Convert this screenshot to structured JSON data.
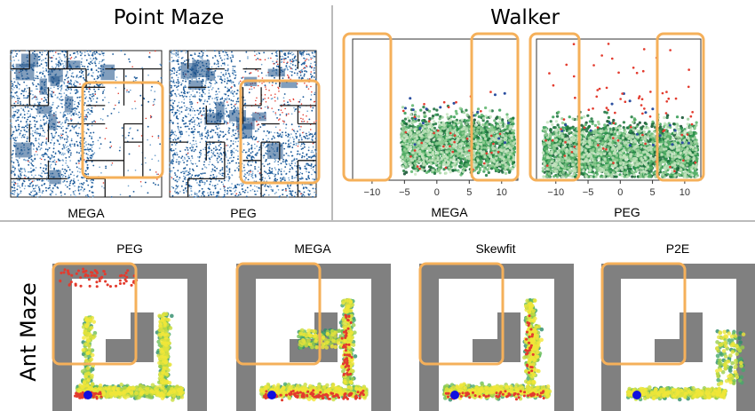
{
  "titles": {
    "point_maze": "Point Maze",
    "walker": "Walker",
    "ant_maze": "Ant Maze"
  },
  "point_maze": {
    "panels": [
      {
        "label": "MEGA"
      },
      {
        "label": "PEG"
      }
    ]
  },
  "walker": {
    "x_ticks": [
      -10,
      -5,
      0,
      5,
      10
    ],
    "xlim": [
      -13,
      12.5
    ],
    "panels": [
      {
        "label": "MEGA",
        "x_range": [
          -5.5,
          12
        ]
      },
      {
        "label": "PEG",
        "x_range": [
          -12,
          12
        ]
      }
    ]
  },
  "ant_maze": {
    "panels": [
      {
        "label": "PEG"
      },
      {
        "label": "MEGA"
      },
      {
        "label": "Skewfit"
      },
      {
        "label": "P2E"
      }
    ]
  },
  "colors": {
    "highlight": "#F5B05A",
    "maze_blue": "#1F5C9A",
    "wall_gray": "#808080",
    "walker_green": "#1E7A3C",
    "red_points": "#E33B2E",
    "start_marker": "#1010E0"
  },
  "chart_data": [
    {
      "type": "scatter",
      "title": "Point Maze",
      "panels": [
        "MEGA",
        "PEG"
      ]
    },
    {
      "type": "scatter",
      "title": "Walker",
      "panels": [
        "MEGA",
        "PEG"
      ],
      "x_ticks": [
        -10,
        -5,
        0,
        5,
        10
      ]
    },
    {
      "type": "scatter",
      "title": "Ant Maze",
      "panels": [
        "PEG",
        "MEGA",
        "Skewfit",
        "P2E"
      ]
    }
  ]
}
